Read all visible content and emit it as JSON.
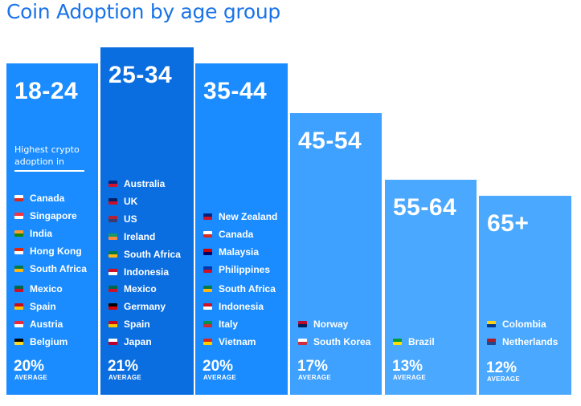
{
  "title": "Coin Adoption by age group",
  "highlight_label_line1": "Highest crypto",
  "highlight_label_line2": "adoption in",
  "average_label": "AVERAGE",
  "colors": {
    "title": "#1a73e8",
    "bar_default": "#1a8cff",
    "bar_highlight": "#0b6ee0",
    "bar_light": "#3ea0ff",
    "bar_lighter": "#4aa8ff"
  },
  "chart_data": {
    "type": "bar",
    "title": "Coin Adoption by age group",
    "xlabel": "",
    "ylabel": "",
    "categories": [
      "18-24",
      "25-34",
      "35-44",
      "45-54",
      "55-64",
      "65+"
    ],
    "values": [
      20,
      21,
      20,
      17,
      13,
      12
    ],
    "unit": "%",
    "value_labels": [
      "20%",
      "21%",
      "20%",
      "17%",
      "13%",
      "12%"
    ],
    "ylim": [
      0,
      21
    ],
    "grid": false,
    "legend": "none",
    "countries": [
      [
        "Canada",
        "Singapore",
        "India",
        "Hong Kong",
        "South Africa",
        "Mexico",
        "Spain",
        "Austria",
        "Belgium"
      ],
      [
        "Australia",
        "UK",
        "US",
        "Ireland",
        "South Africa",
        "Indonesia",
        "Mexico",
        "Germany",
        "Spain",
        "Japan"
      ],
      [
        "New Zealand",
        "Canada",
        "Malaysia",
        "Philippines",
        "South Africa",
        "Indonesia",
        "Italy",
        "Vietnam"
      ],
      [
        "Norway",
        "South Korea"
      ],
      [
        "Brazil"
      ],
      [
        "Colombia",
        "Netherlands"
      ]
    ]
  }
}
